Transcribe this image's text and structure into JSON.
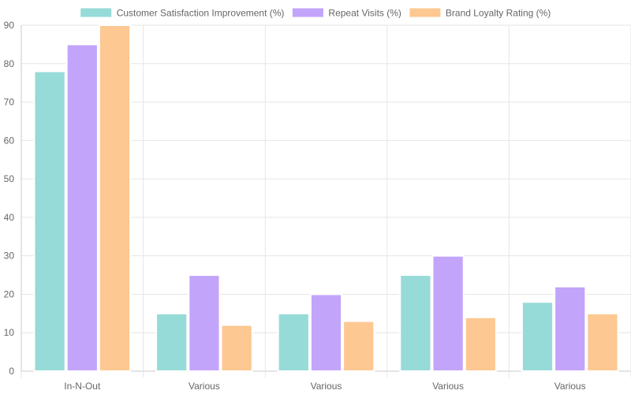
{
  "chart_data": {
    "type": "bar",
    "categories": [
      "In-N-Out",
      "Various",
      "Various",
      "Various",
      "Various"
    ],
    "series": [
      {
        "name": "Customer Satisfaction Improvement (%)",
        "values": [
          78,
          15,
          15,
          25,
          18
        ],
        "fill": "#96dbd7",
        "stroke": "#ffffff"
      },
      {
        "name": "Repeat Visits (%)",
        "values": [
          85,
          25,
          20,
          30,
          22
        ],
        "fill": "#c3a4fb",
        "stroke": "#ffffff"
      },
      {
        "name": "Brand Loyalty Rating (%)",
        "values": [
          90,
          12,
          13,
          14,
          15
        ],
        "fill": "#fdc891",
        "stroke": "#ffffff"
      }
    ],
    "y_ticks": [
      0,
      10,
      20,
      30,
      40,
      50,
      60,
      70,
      80,
      90
    ],
    "ylim": [
      0,
      90
    ],
    "grid": true,
    "legend_position": "top-center",
    "title": "",
    "xlabel": "",
    "ylabel": ""
  }
}
